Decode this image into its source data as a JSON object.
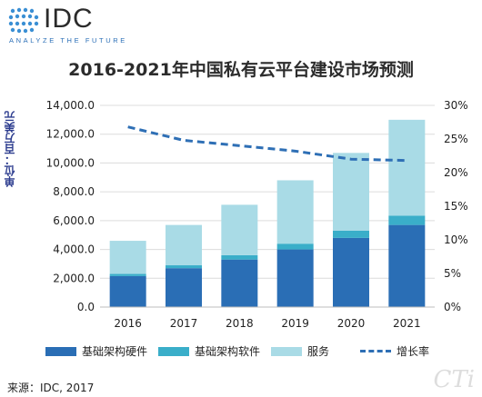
{
  "header": {
    "logo_text": "IDC",
    "logo_tagline": "ANALYZE THE FUTURE"
  },
  "chart_data": {
    "type": "bar",
    "stacked": true,
    "title": "2016-2021年中国私有云平台建设市场预测",
    "ylabel": "单位：百万美元",
    "categories": [
      "2016",
      "2017",
      "2018",
      "2019",
      "2020",
      "2021"
    ],
    "series": [
      {
        "name": "基础架构硬件",
        "values": [
          2150,
          2700,
          3300,
          4000,
          4800,
          5700
        ],
        "color": "#2a6eb5"
      },
      {
        "name": "基础架构软件",
        "values": [
          150,
          200,
          300,
          400,
          500,
          650
        ],
        "color": "#3aaec9"
      },
      {
        "name": "服务",
        "values": [
          2300,
          2800,
          3500,
          4400,
          5400,
          6650
        ],
        "color": "#a9dbe6"
      }
    ],
    "line_series": {
      "name": "增长率",
      "values": [
        26.8,
        24.8,
        24.0,
        23.2,
        22.0,
        21.8
      ],
      "color": "#2e6fb5",
      "style": "dashed"
    },
    "yaxis_left": {
      "min": 0,
      "max": 14000,
      "ticks": [
        "0.0",
        "2,000.0",
        "4,000.0",
        "6,000.0",
        "8,000.0",
        "10,000.0",
        "12,000.0",
        "14,000.0"
      ]
    },
    "yaxis_right": {
      "min": 0,
      "max": 30,
      "ticks": [
        "0%",
        "5%",
        "10%",
        "15%",
        "20%",
        "25%",
        "30%"
      ]
    },
    "grid": true,
    "legend_position": "bottom"
  },
  "source": "来源：IDC, 2017",
  "watermark": "CTi"
}
